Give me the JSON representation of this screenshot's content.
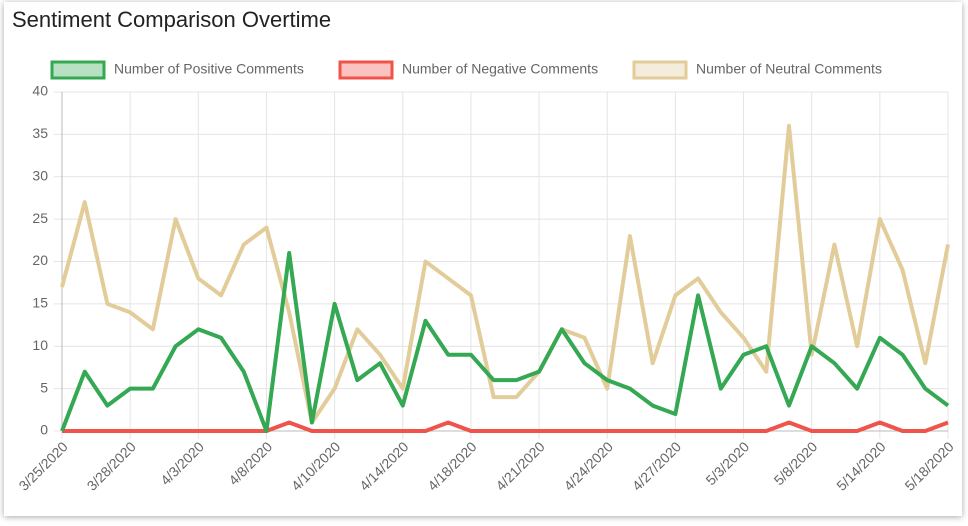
{
  "chart_data": {
    "type": "line",
    "title": "Sentiment Comparison Overtime",
    "categories": [
      "3/25/2020",
      null,
      null,
      "3/28/2020",
      null,
      null,
      "4/3/2020",
      null,
      null,
      "4/8/2020",
      null,
      null,
      "4/10/2020",
      null,
      null,
      "4/14/2020",
      null,
      null,
      "4/18/2020",
      null,
      null,
      "4/21/2020",
      null,
      null,
      "4/24/2020",
      null,
      null,
      "4/27/2020",
      null,
      null,
      "5/3/2020",
      null,
      null,
      "5/8/2020",
      null,
      null,
      "5/14/2020",
      null,
      null,
      "5/18/2020"
    ],
    "series": [
      {
        "name": "Number of Positive Comments",
        "color": "#34a853",
        "values": [
          0,
          7,
          3,
          5,
          5,
          10,
          12,
          11,
          7,
          0,
          21,
          1,
          15,
          6,
          8,
          3,
          13,
          9,
          9,
          6,
          6,
          7,
          12,
          8,
          6,
          5,
          3,
          2,
          16,
          5,
          9,
          10,
          3,
          10,
          8,
          5,
          11,
          9,
          5,
          3
        ]
      },
      {
        "name": "Number of Negative Comments",
        "color": "#f0534a",
        "values": [
          0,
          0,
          0,
          0,
          0,
          0,
          0,
          0,
          0,
          0,
          1,
          0,
          0,
          0,
          0,
          0,
          0,
          1,
          0,
          0,
          0,
          0,
          0,
          0,
          0,
          0,
          0,
          0,
          0,
          0,
          0,
          0,
          1,
          0,
          0,
          0,
          1,
          0,
          0,
          1
        ]
      },
      {
        "name": "Number of Neutral Comments",
        "color": "#e2cc99",
        "values": [
          17,
          27,
          15,
          14,
          12,
          25,
          18,
          16,
          22,
          24,
          14,
          1,
          5,
          12,
          9,
          5,
          20,
          18,
          16,
          4,
          4,
          7,
          12,
          11,
          5,
          23,
          8,
          16,
          18,
          14,
          11,
          7,
          36,
          9,
          22,
          10,
          25,
          19,
          8,
          22
        ]
      }
    ],
    "ylim": [
      0,
      40
    ],
    "yticks": [
      0,
      5,
      10,
      15,
      20,
      25,
      30,
      35,
      40
    ],
    "grid": true
  }
}
